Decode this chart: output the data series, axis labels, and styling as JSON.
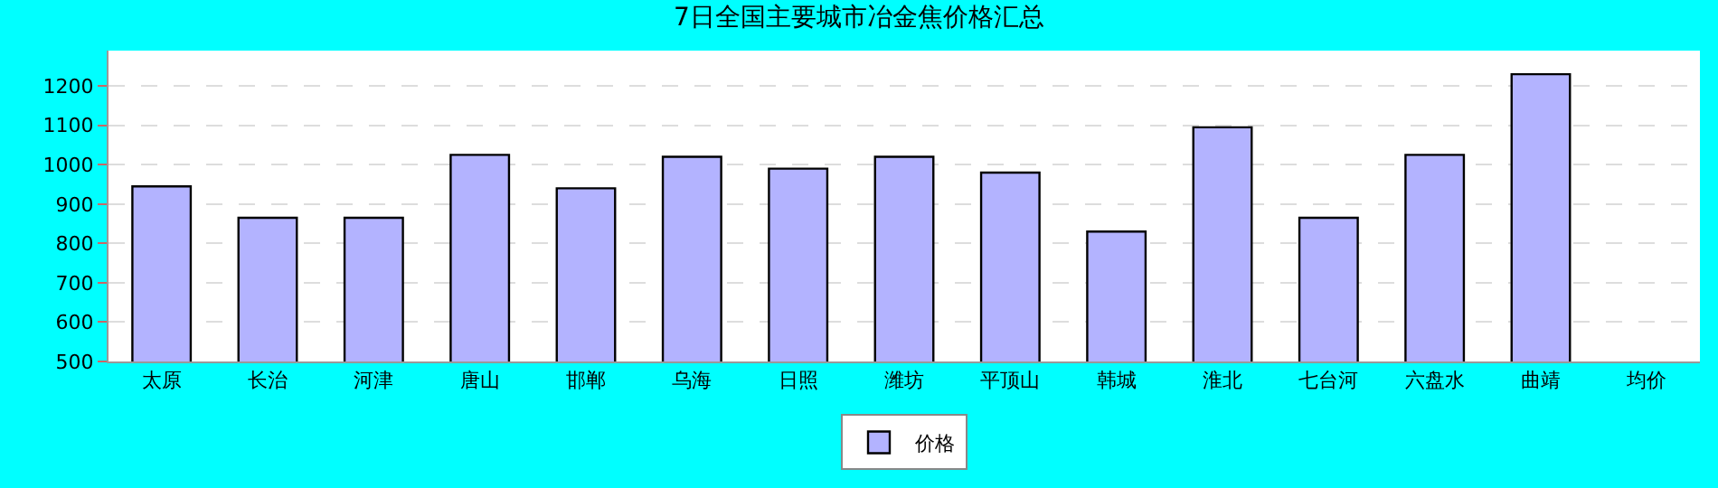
{
  "chart_data": {
    "type": "bar",
    "title": "7日全国主要城市冶金焦价格汇总",
    "categories": [
      "太原",
      "长治",
      "河津",
      "唐山",
      "邯郸",
      "乌海",
      "日照",
      "潍坊",
      "平顶山",
      "韩城",
      "淮北",
      "七台河",
      "六盘水",
      "曲靖",
      "均价"
    ],
    "series": [
      {
        "name": "价格",
        "color": "#b3b3ff",
        "values": [
          945,
          865,
          865,
          1025,
          940,
          1020,
          990,
          1020,
          980,
          830,
          1095,
          865,
          1025,
          1230,
          null
        ]
      }
    ],
    "ylim": [
      500,
      1290
    ],
    "yticks": [
      500,
      600,
      700,
      800,
      900,
      1000,
      1100,
      1200
    ],
    "grid": "y",
    "legend": "bottom"
  }
}
